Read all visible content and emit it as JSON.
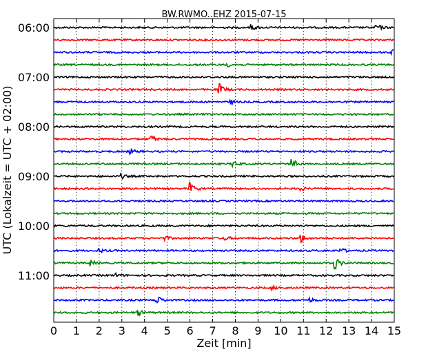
{
  "chart_data": {
    "type": "line",
    "title": "BW.RWMO..EHZ 2015-07-15",
    "xlabel": "Zeit  [min]",
    "ylabel": "UTC (Lokalzeit = UTC + 02:00)",
    "xlim": [
      0,
      15
    ],
    "x_ticks": [
      "0",
      "1",
      "2",
      "3",
      "4",
      "5",
      "6",
      "7",
      "8",
      "9",
      "10",
      "11",
      "12",
      "13",
      "14",
      "15"
    ],
    "y_tick_labels": [
      "06:00",
      "07:00",
      "08:00",
      "09:00",
      "10:00",
      "11:00"
    ],
    "grid": "vertical dotted",
    "trace_colors": [
      "#000000",
      "#ff0000",
      "#0000ff",
      "#008000"
    ],
    "series": [
      {
        "start": "06:00",
        "color": "#000000",
        "events": [
          [
            8.7,
            0.4
          ],
          [
            14.2,
            0.6
          ]
        ]
      },
      {
        "start": "06:15",
        "color": "#ff0000",
        "events": []
      },
      {
        "start": "06:30",
        "color": "#0000ff",
        "events": [
          [
            14.9,
            0.4
          ]
        ]
      },
      {
        "start": "06:45",
        "color": "#008000",
        "events": [
          [
            7.6,
            0.4
          ]
        ]
      },
      {
        "start": "07:00",
        "color": "#000000",
        "events": []
      },
      {
        "start": "07:15",
        "color": "#ff0000",
        "events": [
          [
            7.3,
            0.9
          ]
        ]
      },
      {
        "start": "07:30",
        "color": "#0000ff",
        "events": [
          [
            7.8,
            0.3
          ]
        ]
      },
      {
        "start": "07:45",
        "color": "#008000",
        "events": []
      },
      {
        "start": "08:00",
        "color": "#000000",
        "events": []
      },
      {
        "start": "08:15",
        "color": "#ff0000",
        "events": [
          [
            4.3,
            0.5
          ]
        ]
      },
      {
        "start": "08:30",
        "color": "#0000ff",
        "events": [
          [
            3.4,
            0.4
          ]
        ]
      },
      {
        "start": "08:45",
        "color": "#008000",
        "events": [
          [
            7.9,
            0.5
          ],
          [
            10.5,
            0.8
          ]
        ]
      },
      {
        "start": "09:00",
        "color": "#000000",
        "events": [
          [
            3.0,
            0.3
          ]
        ]
      },
      {
        "start": "09:15",
        "color": "#ff0000",
        "events": [
          [
            6.0,
            1.0
          ],
          [
            10.8,
            0.6
          ]
        ]
      },
      {
        "start": "09:30",
        "color": "#0000ff",
        "events": []
      },
      {
        "start": "09:45",
        "color": "#008000",
        "events": []
      },
      {
        "start": "10:00",
        "color": "#000000",
        "events": []
      },
      {
        "start": "10:15",
        "color": "#ff0000",
        "events": [
          [
            4.9,
            0.3
          ],
          [
            7.5,
            0.3
          ],
          [
            10.9,
            0.7
          ]
        ]
      },
      {
        "start": "10:30",
        "color": "#0000ff",
        "events": [
          [
            2.0,
            0.3
          ],
          [
            12.6,
            0.5
          ]
        ]
      },
      {
        "start": "10:45",
        "color": "#008000",
        "events": [
          [
            1.6,
            0.5
          ],
          [
            12.4,
            1.0
          ]
        ]
      },
      {
        "start": "11:00",
        "color": "#000000",
        "events": [
          [
            2.7,
            0.3
          ]
        ]
      },
      {
        "start": "11:15",
        "color": "#ff0000",
        "events": [
          [
            9.6,
            0.3
          ]
        ]
      },
      {
        "start": "11:30",
        "color": "#0000ff",
        "events": [
          [
            4.5,
            1.0
          ],
          [
            11.3,
            0.3
          ]
        ]
      },
      {
        "start": "11:45",
        "color": "#008000",
        "events": [
          [
            3.7,
            0.5
          ]
        ]
      }
    ]
  }
}
